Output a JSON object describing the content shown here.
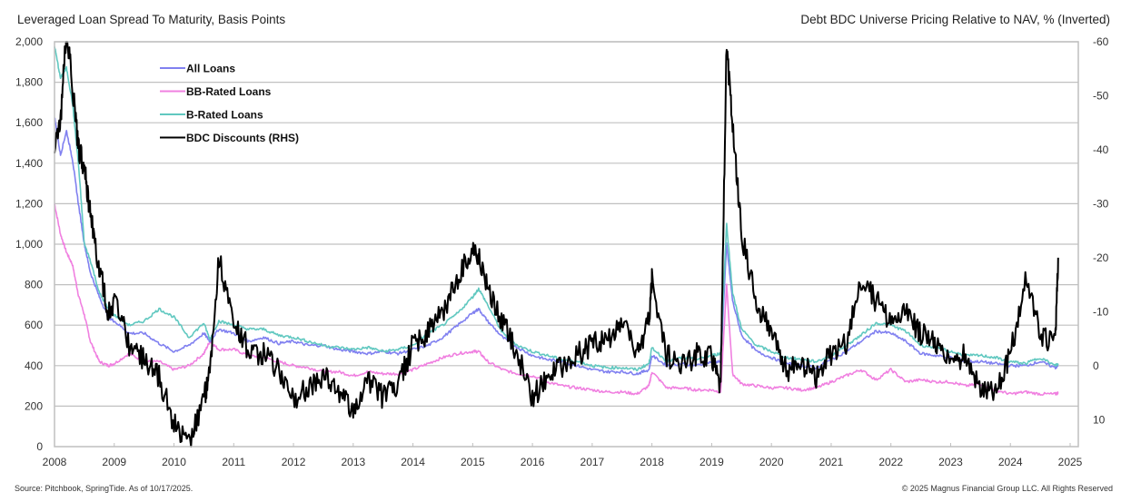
{
  "header": {
    "left_title": "Leveraged Loan Spread To Maturity, Basis Points",
    "right_title": "Debt BDC Universe Pricing Relative to NAV, % (Inverted)"
  },
  "footer": {
    "source": "Source: Pitchbook, SpringTide. As of 10/17/2025.",
    "copyright": "© 2025 Magnus Financial Group LLC. All Rights Reserved"
  },
  "colors": {
    "all_loans": "#8080f0",
    "bb_rated": "#f080e0",
    "b_rated": "#60c8c0",
    "bdc": "#000000",
    "grid": "#c0c0c0",
    "axis": "#bfbfbf"
  },
  "chart_data": {
    "type": "line",
    "title": "Leveraged Loan Spread To Maturity, Basis Points",
    "secondary_title": "Debt BDC Universe Pricing Relative to NAV, % (Inverted)",
    "xlabel": "",
    "ylabel": "Basis Points",
    "y2label": "% (Inverted)",
    "xlim": [
      2008,
      2025
    ],
    "ylim": [
      0,
      2000
    ],
    "y2lim": [
      -60,
      15
    ],
    "y2_inverted": true,
    "grid": true,
    "legend_position": "upper-left",
    "x_ticks": [
      "2008",
      "2009",
      "2010",
      "2011",
      "2012",
      "2013",
      "2014",
      "2015",
      "2016",
      "2017",
      "2018",
      "2019",
      "2020",
      "2021",
      "2022",
      "2023",
      "2024",
      "2025"
    ],
    "y_ticks": [
      "0",
      "200",
      "400",
      "600",
      "800",
      "1,000",
      "1,200",
      "1,400",
      "1,600",
      "1,800",
      "2,000"
    ],
    "y2_ticks": [
      "-60",
      "-50",
      "-40",
      "-30",
      "-20",
      "-10",
      "0",
      "10"
    ],
    "legend": [
      "All Loans",
      "BB-Rated Loans",
      "B-Rated Loans",
      "BDC Discounts (RHS)"
    ],
    "x": [
      2008.0,
      2008.1,
      2008.2,
      2008.3,
      2008.4,
      2008.5,
      2008.6,
      2008.75,
      2008.9,
      2009.0,
      2009.25,
      2009.5,
      2009.75,
      2010.0,
      2010.25,
      2010.5,
      2010.6,
      2010.75,
      2011.0,
      2011.25,
      2011.5,
      2011.75,
      2012.0,
      2012.25,
      2012.5,
      2012.75,
      2013.0,
      2013.25,
      2013.5,
      2013.75,
      2014.0,
      2014.25,
      2014.5,
      2014.75,
      2015.0,
      2015.1,
      2015.25,
      2015.5,
      2015.75,
      2016.0,
      2016.25,
      2016.5,
      2016.75,
      2017.0,
      2017.25,
      2017.5,
      2017.75,
      2017.95,
      2018.0,
      2018.25,
      2018.5,
      2018.75,
      2019.0,
      2019.15,
      2019.25,
      2019.35,
      2019.5,
      2019.75,
      2020.0,
      2020.25,
      2020.5,
      2020.75,
      2021.0,
      2021.25,
      2021.5,
      2021.75,
      2022.0,
      2022.25,
      2022.5,
      2022.75,
      2023.0,
      2023.25,
      2023.5,
      2023.75,
      2024.0,
      2024.25,
      2024.5,
      2024.75,
      2024.8
    ],
    "series": [
      {
        "name": "All Loans",
        "axis": "left",
        "values": [
          1630,
          1440,
          1560,
          1420,
          1200,
          1000,
          860,
          740,
          640,
          620,
          560,
          560,
          510,
          470,
          500,
          560,
          520,
          580,
          560,
          520,
          540,
          510,
          520,
          500,
          500,
          480,
          470,
          460,
          470,
          460,
          480,
          500,
          540,
          600,
          660,
          680,
          620,
          540,
          490,
          450,
          430,
          420,
          400,
          380,
          370,
          370,
          360,
          380,
          450,
          400,
          410,
          400,
          420,
          420,
          1000,
          720,
          550,
          470,
          440,
          410,
          400,
          390,
          430,
          470,
          520,
          570,
          560,
          520,
          460,
          450,
          440,
          420,
          420,
          410,
          400,
          400,
          420,
          390,
          400
        ]
      },
      {
        "name": "BB-Rated Loans",
        "axis": "left",
        "values": [
          1200,
          1050,
          960,
          900,
          750,
          650,
          520,
          420,
          400,
          410,
          460,
          420,
          420,
          380,
          400,
          460,
          520,
          480,
          480,
          450,
          440,
          420,
          400,
          390,
          370,
          370,
          350,
          370,
          360,
          360,
          380,
          410,
          440,
          460,
          470,
          470,
          420,
          380,
          360,
          350,
          320,
          300,
          290,
          280,
          270,
          270,
          260,
          300,
          370,
          290,
          290,
          280,
          280,
          270,
          800,
          360,
          310,
          300,
          290,
          290,
          280,
          290,
          320,
          350,
          380,
          330,
          380,
          320,
          330,
          320,
          320,
          300,
          310,
          280,
          260,
          270,
          260,
          260,
          265
        ]
      },
      {
        "name": "B-Rated Loans",
        "axis": "left",
        "values": [
          1980,
          1820,
          1870,
          1700,
          1400,
          1000,
          920,
          760,
          680,
          650,
          600,
          620,
          680,
          640,
          540,
          610,
          530,
          620,
          600,
          580,
          580,
          550,
          540,
          520,
          500,
          490,
          480,
          490,
          470,
          480,
          500,
          560,
          600,
          660,
          740,
          780,
          700,
          560,
          500,
          470,
          450,
          430,
          420,
          400,
          390,
          390,
          380,
          410,
          490,
          420,
          440,
          430,
          450,
          460,
          1100,
          760,
          580,
          500,
          470,
          440,
          430,
          420,
          450,
          500,
          550,
          610,
          600,
          570,
          500,
          490,
          470,
          450,
          450,
          440,
          420,
          410,
          440,
          400,
          410
        ]
      },
      {
        "name": "BDC Discounts (RHS)",
        "axis": "right",
        "values": [
          -40,
          -45,
          -62,
          -52,
          -40,
          -37,
          -28,
          -18,
          -10,
          -12,
          -4,
          -1,
          2,
          11,
          14,
          6,
          1,
          -20,
          -8,
          -3,
          -2,
          1,
          6,
          4,
          2,
          5,
          8,
          3,
          6,
          4,
          -4,
          -6,
          -10,
          -16,
          -22,
          -20,
          -14,
          -8,
          -2,
          6,
          2,
          0,
          -2,
          -4,
          -5,
          -8,
          -2,
          -8,
          -16,
          -2,
          0,
          -2,
          -2,
          4,
          -60,
          -44,
          -24,
          -12,
          -6,
          1,
          0,
          2,
          -2,
          -4,
          -16,
          -12,
          -8,
          -10,
          -6,
          -4,
          0,
          -2,
          4,
          5,
          -2,
          -16,
          -6,
          -4,
          -20
        ]
      }
    ]
  }
}
